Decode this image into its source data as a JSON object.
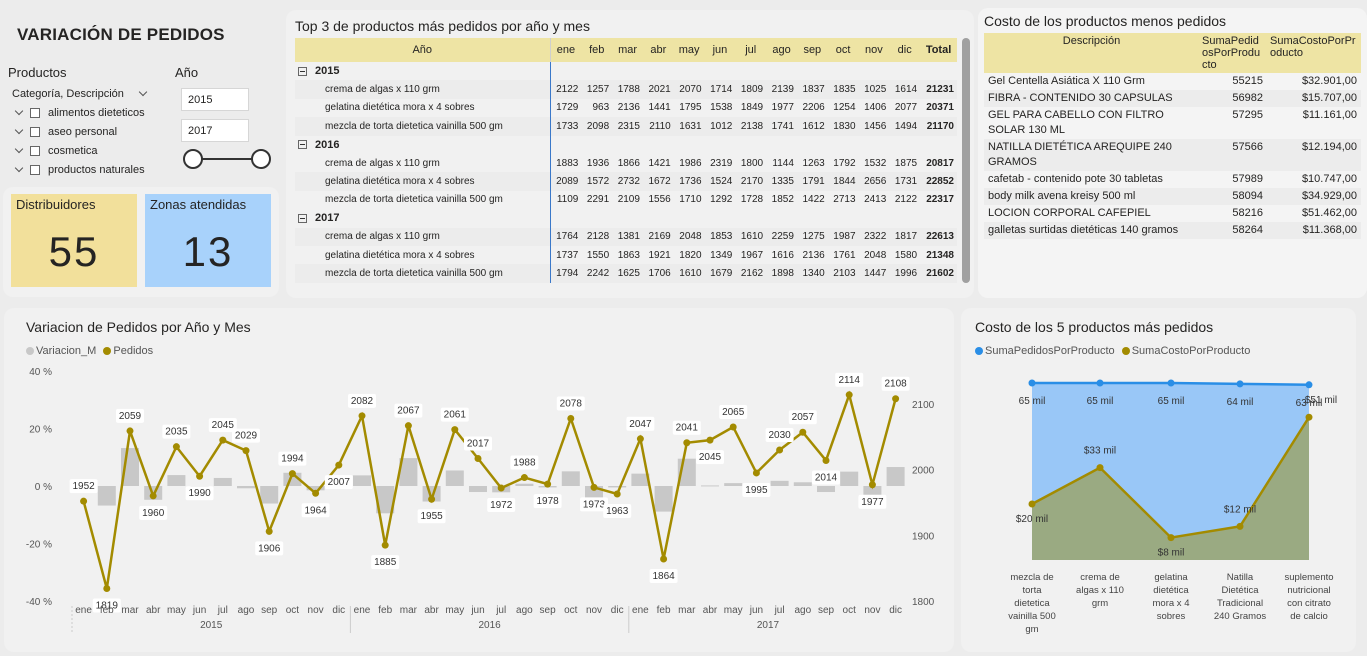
{
  "page": {
    "title": "VARIACIÓN DE PEDIDOS"
  },
  "slicers": {
    "productos": {
      "title": "Productos",
      "level_label": "Categoría, Descripción",
      "items": [
        "alimentos dieteticos",
        "aseo personal",
        "cosmetica",
        "productos naturales"
      ]
    },
    "anio": {
      "title": "Año",
      "from": "2015",
      "to": "2017"
    }
  },
  "kpis": {
    "distribuidores": {
      "label": "Distribuidores",
      "value": "55",
      "color": "#f2e09b"
    },
    "zonas": {
      "label": "Zonas atendidas",
      "value": "13",
      "color": "#a8d2fb"
    }
  },
  "matrix": {
    "title": "Top 3 de productos más pedidos por año y mes",
    "year_col": "Año",
    "months": [
      "ene",
      "feb",
      "mar",
      "abr",
      "may",
      "jun",
      "jul",
      "ago",
      "sep",
      "oct",
      "nov",
      "dic"
    ],
    "total_col": "Total",
    "groups": [
      {
        "year": "2015",
        "rows": [
          {
            "name": "crema de algas x 110 grm",
            "values": [
              "2122",
              "1257",
              "1788",
              "2021",
              "2070",
              "1714",
              "1809",
              "2139",
              "1837",
              "1835",
              "1025",
              "1614"
            ],
            "total": "21231"
          },
          {
            "name": "gelatina dietética mora x 4 sobres",
            "values": [
              "1729",
              "963",
              "2136",
              "1441",
              "1795",
              "1538",
              "1849",
              "1977",
              "2206",
              "1254",
              "1406",
              "2077"
            ],
            "total": "20371"
          },
          {
            "name": "mezcla de torta dietetica vainilla 500 gm",
            "values": [
              "1733",
              "2098",
              "2315",
              "2110",
              "1631",
              "1012",
              "2138",
              "1741",
              "1612",
              "1830",
              "1456",
              "1494"
            ],
            "total": "21170"
          }
        ]
      },
      {
        "year": "2016",
        "rows": [
          {
            "name": "crema de algas x 110 grm",
            "values": [
              "1883",
              "1936",
              "1866",
              "1421",
              "1986",
              "2319",
              "1800",
              "1144",
              "1263",
              "1792",
              "1532",
              "1875"
            ],
            "total": "20817"
          },
          {
            "name": "gelatina dietética mora x 4 sobres",
            "values": [
              "2089",
              "1572",
              "2732",
              "1672",
              "1736",
              "1524",
              "2170",
              "1335",
              "1791",
              "1844",
              "2656",
              "1731"
            ],
            "total": "22852"
          },
          {
            "name": "mezcla de torta dietetica vainilla 500 gm",
            "values": [
              "1109",
              "2291",
              "2109",
              "1556",
              "1710",
              "1292",
              "1728",
              "1852",
              "1422",
              "2713",
              "2413",
              "2122"
            ],
            "total": "22317"
          }
        ]
      },
      {
        "year": "2017",
        "rows": [
          {
            "name": "crema de algas x 110 grm",
            "values": [
              "1764",
              "2128",
              "1381",
              "2169",
              "2048",
              "1853",
              "1610",
              "2259",
              "1275",
              "1987",
              "2322",
              "1817"
            ],
            "total": "22613"
          },
          {
            "name": "gelatina dietética mora x 4 sobres",
            "values": [
              "1737",
              "1550",
              "1863",
              "1921",
              "1820",
              "1349",
              "1967",
              "1616",
              "2136",
              "1761",
              "2048",
              "1580"
            ],
            "total": "21348"
          },
          {
            "name": "mezcla de torta dietetica vainilla 500 gm",
            "values": [
              "1794",
              "2242",
              "1625",
              "1706",
              "1610",
              "1679",
              "2162",
              "1898",
              "1340",
              "2103",
              "1447",
              "1996"
            ],
            "total": "21602"
          }
        ]
      }
    ]
  },
  "low_table": {
    "title": "Costo de los productos menos pedidos",
    "headers": [
      "Descripción",
      "SumaPedidosPorProducto",
      "SumaCostoPorProducto"
    ],
    "rows": [
      {
        "desc": "Gel Centella Asiática X 110 Grm",
        "pedidos": "55215",
        "costo": "$32.901,00"
      },
      {
        "desc": "FIBRA - CONTENIDO 30 CAPSULAS",
        "pedidos": "56982",
        "costo": "$15.707,00"
      },
      {
        "desc": "GEL PARA CABELLO CON FILTRO SOLAR 130 ML",
        "pedidos": "57295",
        "costo": "$11.161,00"
      },
      {
        "desc": "NATILLA DIETÉTICA AREQUIPE 240 GRAMOS",
        "pedidos": "57566",
        "costo": "$12.194,00"
      },
      {
        "desc": "cafetab - contenido pote 30 tabletas",
        "pedidos": "57989",
        "costo": "$10.747,00"
      },
      {
        "desc": "body milk avena kreisy 500 ml",
        "pedidos": "58094",
        "costo": "$34.929,00"
      },
      {
        "desc": "LOCION CORPORAL CAFEPIEL",
        "pedidos": "58216",
        "costo": "$51.462,00"
      },
      {
        "desc": "galletas surtidas dietéticas 140 gramos",
        "pedidos": "58264",
        "costo": "$11.368,00"
      }
    ]
  },
  "chart_data": [
    {
      "type": "line",
      "title": "Variacion de Pedidos por Año y Mes",
      "legend": [
        "Variacion_M",
        "Pedidos"
      ],
      "colors": {
        "bars": "#c8c8c8",
        "line": "#a38b00"
      },
      "months": [
        "ene",
        "feb",
        "mar",
        "abr",
        "may",
        "jun",
        "jul",
        "ago",
        "sep",
        "oct",
        "nov",
        "dic"
      ],
      "years": [
        "2015",
        "2016",
        "2017"
      ],
      "pedidos": [
        1952,
        1819,
        2059,
        1960,
        2035,
        1990,
        2045,
        2029,
        1906,
        1994,
        1964,
        2007,
        2082,
        1885,
        2067,
        1955,
        2061,
        2017,
        1972,
        1988,
        1978,
        2078,
        1973,
        1963,
        2047,
        1864,
        2041,
        2045,
        2065,
        1995,
        2030,
        2057,
        2014,
        2114,
        1977,
        2108
      ],
      "variacion": [
        0,
        -6.8,
        13.2,
        -4.8,
        3.8,
        -2.2,
        2.8,
        -0.8,
        -6.1,
        4.6,
        -1.5,
        2.2,
        3.7,
        -9.5,
        9.7,
        -5.4,
        5.4,
        -2.1,
        -2.2,
        0.8,
        -0.5,
        5.1,
        -5.1,
        -0.5,
        4.3,
        -8.9,
        9.5,
        0.2,
        1.0,
        -3.4,
        1.8,
        1.3,
        -2.1,
        5.0,
        -6.5,
        6.6
      ],
      "y_left": {
        "ticks": [
          "40 %",
          "20 %",
          "0 %",
          "-20 %",
          "-40 %"
        ],
        "range": [
          -40,
          40
        ]
      },
      "y_right": {
        "ticks": [
          "2100",
          "2000",
          "1900",
          "1800"
        ],
        "range": [
          1800,
          2100
        ]
      }
    },
    {
      "type": "area",
      "title": "Costo de los 5 productos más pedidos",
      "legend": [
        "SumaPedidosPorProducto",
        "SumaCostoPorProducto"
      ],
      "colors": {
        "pedidos": "#2a8ee6",
        "costo": "#a38b00"
      },
      "categories": [
        [
          "mezcla de",
          "torta",
          "dietetica",
          "vainilla 500",
          "gm"
        ],
        [
          "crema de",
          "algas x 110",
          "grm"
        ],
        [
          "gelatina",
          "dietética",
          "mora x 4",
          "sobres"
        ],
        [
          "Natilla",
          "Dietética",
          "Tradicional",
          "240 Gramos"
        ],
        [
          "suplemento",
          "nutricional",
          "con citrato",
          "de calcio"
        ]
      ],
      "pedidos": [
        65,
        65,
        65,
        64,
        63
      ],
      "pedidos_labels": [
        "65 mil",
        "65 mil",
        "65 mil",
        "64 mil",
        "63 mil"
      ],
      "costo": [
        20,
        33,
        8,
        12,
        51
      ],
      "costo_labels": [
        "$20 mil",
        "$33 mil",
        "$8 mil",
        "$12 mil",
        "$51 mil"
      ]
    }
  ]
}
